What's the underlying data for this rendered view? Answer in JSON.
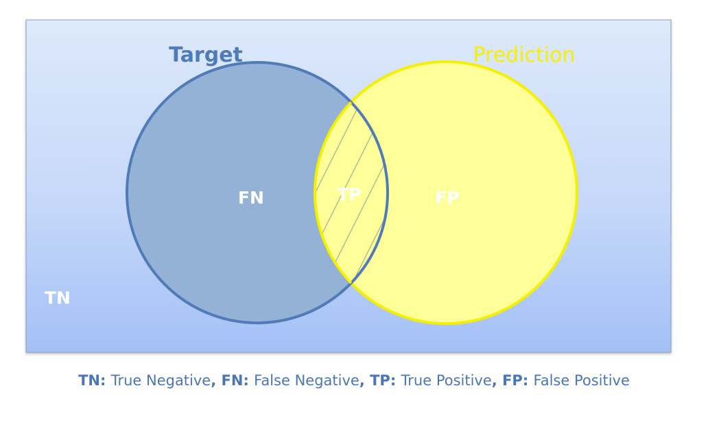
{
  "labels": {
    "target": "Target",
    "prediction": "Prediction",
    "fn": "FN",
    "tp": "TP",
    "fp": "FP",
    "tn": "TN"
  },
  "legend": [
    {
      "key": "TN",
      "sep": ": ",
      "desc": "True Negative",
      "comma": ", "
    },
    {
      "key": "FN",
      "sep": ": ",
      "desc": "False Negative",
      "comma": ", "
    },
    {
      "key": "TP",
      "sep": ": ",
      "desc": "True Positive",
      "comma": ", "
    },
    {
      "key": "FP",
      "sep": ": ",
      "desc": "False Positive",
      "comma": ""
    }
  ],
  "colors": {
    "target_fill": "#94b1d6",
    "target_stroke": "#4f7cb8",
    "prediction_fill": "#ffff99",
    "prediction_stroke": "#f5f000",
    "background_top": "#dde9fb",
    "background_bottom": "#a3c0f6",
    "caption_text": "#4a76b8"
  }
}
